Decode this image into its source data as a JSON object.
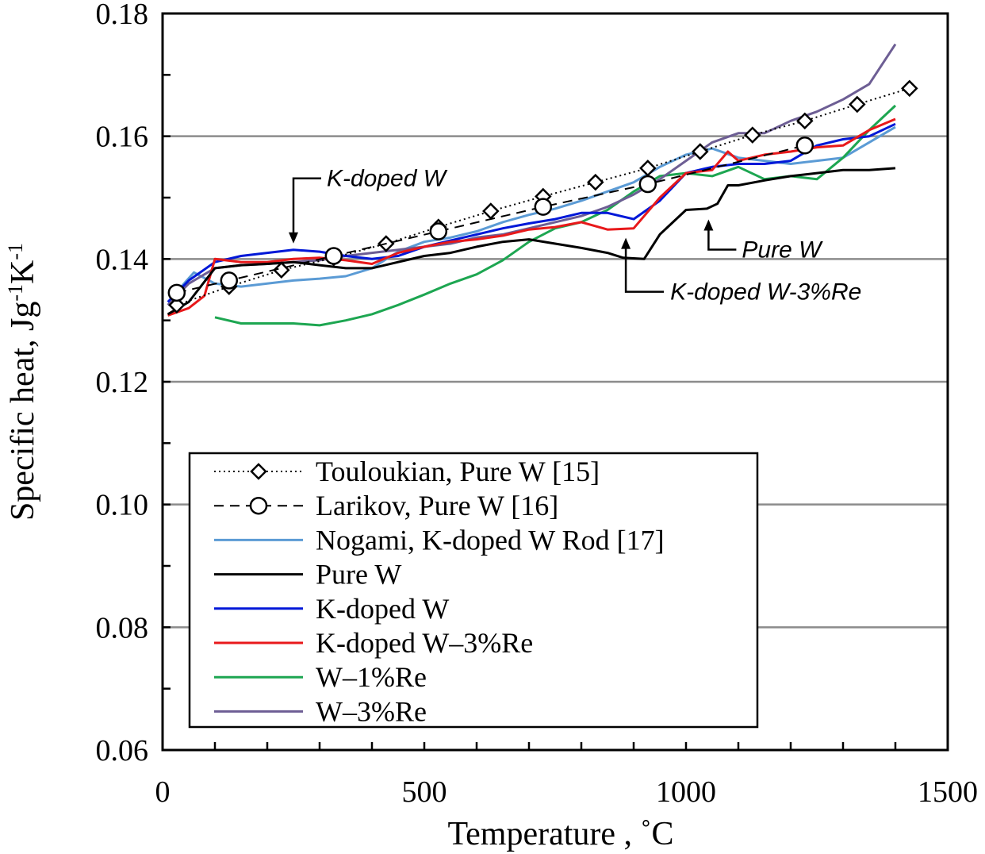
{
  "chart_data": {
    "type": "line",
    "xlabel": "Temperature , ˚C",
    "ylabel": "Specific heat, Jg",
    "ylabel_sup1": "-1",
    "ylabel_mid": "K",
    "ylabel_sup2": "-1",
    "xlim": [
      0,
      1500
    ],
    "ylim": [
      0.06,
      0.18
    ],
    "x_ticks": [
      0,
      500,
      1000,
      1500
    ],
    "x_tick_labels": [
      "0",
      "500",
      "1000",
      "1500"
    ],
    "y_ticks": [
      0.06,
      0.08,
      0.1,
      0.12,
      0.14,
      0.16,
      0.18
    ],
    "y_tick_labels": [
      "0.06",
      "0.08",
      "0.10",
      "0.12",
      "0.14",
      "0.16",
      "0.18"
    ],
    "grid": "horizontal gray at 0.08, 0.10, 0.12, 0.14, 0.16",
    "legend_position": "bottom-left",
    "series": [
      {
        "name": "Touloukian, Pure W [15]",
        "color": "#000000",
        "style": "dotted",
        "marker": "diamond",
        "x": [
          27,
          127,
          227,
          327,
          427,
          527,
          627,
          727,
          827,
          927,
          1027,
          1127,
          1227,
          1327,
          1427
        ],
        "y": [
          0.1325,
          0.1355,
          0.1382,
          0.1402,
          0.1425,
          0.1452,
          0.1478,
          0.1502,
          0.1525,
          0.1548,
          0.1575,
          0.1602,
          0.1625,
          0.1652,
          0.1678
        ]
      },
      {
        "name": "Larikov, Pure W [16]",
        "color": "#000000",
        "style": "dashed",
        "marker": "circle",
        "x": [
          27,
          127,
          327,
          527,
          727,
          927,
          1227
        ],
        "y": [
          0.1345,
          0.1365,
          0.1405,
          0.1445,
          0.1485,
          0.1522,
          0.1585
        ]
      },
      {
        "name": "Nogami, K-doped W Rod [17]",
        "color": "#5b9bd5",
        "style": "solid",
        "x": [
          20,
          60,
          100,
          150,
          200,
          250,
          300,
          350,
          400,
          450,
          500,
          550,
          600,
          650,
          700,
          750,
          800,
          850,
          900,
          950,
          1000,
          1050,
          1100,
          1150,
          1200,
          1250,
          1300,
          1350,
          1400
        ],
        "y": [
          0.134,
          0.1378,
          0.136,
          0.1355,
          0.136,
          0.1365,
          0.1368,
          0.1372,
          0.1385,
          0.1412,
          0.1428,
          0.1435,
          0.1445,
          0.146,
          0.1472,
          0.1482,
          0.1495,
          0.151,
          0.1525,
          0.155,
          0.157,
          0.158,
          0.1565,
          0.156,
          0.1555,
          0.156,
          0.1565,
          0.159,
          0.1615
        ]
      },
      {
        "name": "Pure W",
        "color": "#000000",
        "style": "solid",
        "x": [
          10,
          50,
          100,
          150,
          200,
          250,
          300,
          350,
          400,
          450,
          500,
          550,
          600,
          650,
          700,
          750,
          800,
          850,
          880,
          920,
          950,
          1000,
          1040,
          1060,
          1080,
          1100,
          1150,
          1200,
          1250,
          1300,
          1350,
          1400
        ],
        "y": [
          0.131,
          0.133,
          0.1385,
          0.139,
          0.1392,
          0.1395,
          0.139,
          0.1385,
          0.1385,
          0.1395,
          0.1405,
          0.141,
          0.142,
          0.1428,
          0.1432,
          0.1425,
          0.1418,
          0.141,
          0.1402,
          0.14,
          0.144,
          0.148,
          0.1482,
          0.149,
          0.152,
          0.152,
          0.1528,
          0.1535,
          0.154,
          0.1545,
          0.1545,
          0.1548
        ]
      },
      {
        "name": "K-doped W",
        "color": "#0018d8",
        "style": "solid",
        "x": [
          10,
          50,
          100,
          150,
          200,
          250,
          300,
          350,
          400,
          450,
          500,
          550,
          600,
          650,
          700,
          750,
          800,
          850,
          900,
          950,
          1000,
          1050,
          1100,
          1150,
          1200,
          1250,
          1300,
          1350,
          1400
        ],
        "y": [
          0.133,
          0.1365,
          0.1395,
          0.1405,
          0.141,
          0.1415,
          0.1412,
          0.1405,
          0.14,
          0.1405,
          0.142,
          0.143,
          0.144,
          0.145,
          0.1458,
          0.1465,
          0.1475,
          0.1475,
          0.1465,
          0.1495,
          0.154,
          0.155,
          0.1555,
          0.1555,
          0.156,
          0.1585,
          0.1595,
          0.16,
          0.162
        ]
      },
      {
        "name": "K-doped W–3%Re",
        "color": "#e8191b",
        "style": "solid",
        "x": [
          10,
          50,
          80,
          100,
          150,
          200,
          250,
          300,
          350,
          400,
          450,
          500,
          550,
          600,
          650,
          700,
          750,
          800,
          850,
          900,
          950,
          1000,
          1050,
          1080,
          1100,
          1150,
          1200,
          1250,
          1300,
          1350,
          1400
        ],
        "y": [
          0.1308,
          0.132,
          0.134,
          0.14,
          0.1395,
          0.1395,
          0.14,
          0.1402,
          0.1398,
          0.1392,
          0.141,
          0.142,
          0.1428,
          0.1432,
          0.1438,
          0.1448,
          0.1452,
          0.146,
          0.1448,
          0.145,
          0.15,
          0.154,
          0.1545,
          0.1575,
          0.156,
          0.157,
          0.1575,
          0.1582,
          0.1585,
          0.161,
          0.1628
        ]
      },
      {
        "name": "W–1%Re",
        "color": "#1da651",
        "style": "solid",
        "x": [
          100,
          150,
          200,
          250,
          300,
          350,
          400,
          450,
          500,
          550,
          600,
          650,
          700,
          750,
          800,
          850,
          900,
          950,
          1000,
          1050,
          1100,
          1150,
          1200,
          1250,
          1300,
          1350,
          1400
        ],
        "y": [
          0.1305,
          0.1295,
          0.1295,
          0.1295,
          0.1292,
          0.13,
          0.131,
          0.1325,
          0.1342,
          0.136,
          0.1375,
          0.1398,
          0.1428,
          0.145,
          0.146,
          0.148,
          0.151,
          0.1535,
          0.154,
          0.1535,
          0.155,
          0.153,
          0.1535,
          0.153,
          0.1565,
          0.161,
          0.165
        ]
      },
      {
        "name": "W–3%Re",
        "color": "#6d5e94",
        "style": "solid",
        "x": [
          10,
          50,
          100,
          150,
          200,
          250,
          300,
          350,
          400,
          450,
          500,
          550,
          600,
          650,
          700,
          750,
          800,
          850,
          900,
          950,
          1000,
          1050,
          1100,
          1150,
          1200,
          1250,
          1300,
          1350,
          1400
        ],
        "y": [
          0.1325,
          0.136,
          0.1385,
          0.139,
          0.1392,
          0.1395,
          0.1398,
          0.1405,
          0.141,
          0.1415,
          0.142,
          0.1425,
          0.1435,
          0.144,
          0.145,
          0.146,
          0.147,
          0.1485,
          0.1505,
          0.153,
          0.156,
          0.159,
          0.1605,
          0.1605,
          0.1625,
          0.164,
          0.166,
          0.1685,
          0.175
        ]
      }
    ],
    "annotations": [
      {
        "text": "K-doped W",
        "x": 250,
        "y": 0.1415
      },
      {
        "text": "Pure W",
        "x": 1040,
        "y": 0.148
      },
      {
        "text": "K-doped W-3%Re",
        "x": 885,
        "y": 0.145
      }
    ]
  }
}
